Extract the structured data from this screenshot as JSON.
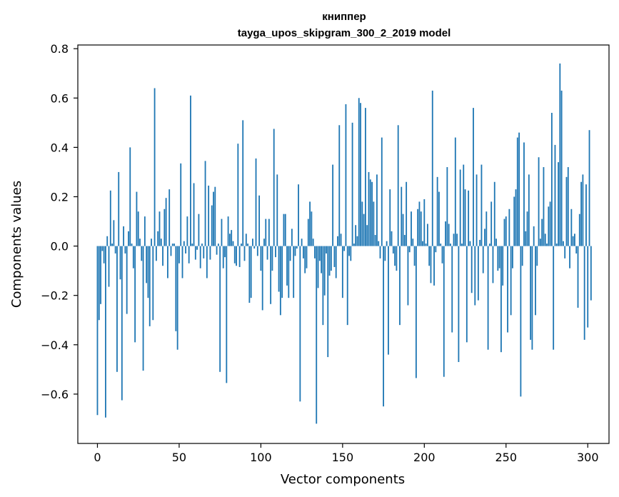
{
  "chart_data": {
    "type": "bar",
    "title_line1": "книппер",
    "title_line2": "tayga_upos_skipgram_300_2_2019 model",
    "xlabel": "Vector components",
    "ylabel": "Components values",
    "xlim": [
      -12,
      313
    ],
    "ylim": [
      -0.8,
      0.815
    ],
    "xticks": [
      0,
      50,
      100,
      150,
      200,
      250,
      300
    ],
    "yticks": [
      -0.6,
      -0.4,
      -0.2,
      0.0,
      0.2,
      0.4,
      0.6,
      0.8
    ],
    "ytick_labels": [
      "−0.6",
      "−0.4",
      "−0.2",
      "0.0",
      "0.2",
      "0.4",
      "0.6",
      "0.8"
    ],
    "bar_color": "#1f77b4",
    "bar_width": 0.8,
    "values": [
      -0.685,
      -0.3,
      -0.235,
      -0.02,
      -0.07,
      -0.695,
      0.04,
      -0.165,
      0.225,
      0.01,
      0.105,
      -0.03,
      -0.51,
      0.3,
      -0.135,
      -0.625,
      0.08,
      -0.03,
      -0.275,
      0.06,
      0.4,
      0.01,
      -0.09,
      -0.39,
      0.22,
      0.14,
      0.03,
      -0.06,
      -0.505,
      0.12,
      -0.15,
      -0.21,
      -0.325,
      0.03,
      -0.3,
      0.64,
      -0.06,
      0.06,
      0.14,
      0.03,
      -0.08,
      0.15,
      0.195,
      -0.13,
      0.23,
      -0.04,
      0.01,
      0.01,
      -0.345,
      -0.42,
      -0.07,
      0.335,
      -0.13,
      0.02,
      -0.03,
      0.12,
      -0.07,
      0.61,
      0.01,
      0.255,
      -0.055,
      -0.015,
      0.13,
      -0.09,
      0.01,
      -0.05,
      0.345,
      -0.13,
      0.245,
      -0.055,
      0.165,
      0.22,
      0.24,
      -0.035,
      0.01,
      -0.51,
      0.11,
      -0.09,
      -0.045,
      -0.555,
      0.12,
      0.05,
      0.065,
      0.02,
      -0.07,
      -0.08,
      0.415,
      -0.085,
      0.01,
      0.51,
      -0.06,
      0.05,
      0.01,
      -0.23,
      -0.21,
      0.03,
      -0.01,
      0.355,
      -0.04,
      0.205,
      -0.1,
      -0.26,
      0.03,
      0.11,
      -0.055,
      0.11,
      -0.235,
      -0.1,
      0.475,
      -0.045,
      0.29,
      -0.185,
      -0.28,
      -0.21,
      0.13,
      0.13,
      -0.16,
      -0.21,
      -0.06,
      0.07,
      -0.21,
      -0.04,
      -0.01,
      0.25,
      -0.63,
      0.03,
      -0.05,
      -0.11,
      -0.09,
      0.11,
      0.18,
      0.14,
      0.03,
      -0.05,
      -0.72,
      -0.17,
      -0.06,
      -0.11,
      -0.32,
      -0.2,
      -0.03,
      -0.45,
      -0.12,
      -0.1,
      0.33,
      -0.085,
      -0.13,
      0.04,
      0.49,
      0.05,
      -0.21,
      -0.02,
      0.575,
      -0.32,
      -0.04,
      -0.06,
      0.5,
      0.01,
      0.085,
      0.04,
      0.6,
      0.58,
      0.18,
      0.13,
      0.56,
      0.085,
      0.3,
      0.27,
      0.26,
      0.18,
      0.045,
      0.29,
      0.02,
      -0.05,
      0.44,
      -0.65,
      -0.06,
      0.02,
      -0.44,
      0.23,
      0.06,
      -0.03,
      -0.08,
      -0.1,
      0.49,
      -0.32,
      0.24,
      0.13,
      0.045,
      0.26,
      -0.24,
      -0.025,
      0.14,
      0.03,
      -0.08,
      -0.535,
      0.15,
      0.18,
      0.14,
      0.02,
      0.19,
      0.01,
      0.09,
      -0.08,
      -0.15,
      0.63,
      -0.16,
      -0.025,
      0.28,
      0.22,
      0.01,
      -0.07,
      -0.53,
      0.1,
      0.32,
      0.09,
      0.01,
      -0.35,
      0.05,
      0.44,
      0.05,
      -0.47,
      0.31,
      0.01,
      0.33,
      0.23,
      -0.39,
      0.225,
      0.02,
      -0.19,
      0.56,
      -0.24,
      0.29,
      -0.22,
      0.025,
      0.33,
      -0.11,
      0.07,
      0.14,
      -0.42,
      0.01,
      0.18,
      -0.15,
      0.26,
      0.03,
      -0.1,
      -0.09,
      -0.43,
      -0.16,
      0.11,
      0.12,
      -0.35,
      0.15,
      -0.28,
      -0.09,
      0.2,
      0.23,
      0.44,
      0.46,
      -0.61,
      -0.08,
      0.42,
      0.06,
      0.14,
      0.29,
      -0.38,
      -0.42,
      0.08,
      -0.28,
      -0.08,
      0.36,
      0.03,
      0.11,
      0.32,
      0.05,
      0.01,
      0.16,
      0.18,
      0.54,
      -0.42,
      0.41,
      0.01,
      0.34,
      0.74,
      0.63,
      0.02,
      -0.05,
      0.28,
      0.32,
      -0.09,
      0.15,
      0.04,
      0.05,
      -0.03,
      -0.25,
      0.13,
      0.26,
      0.29,
      -0.38,
      0.25,
      -0.33,
      0.47,
      -0.22
    ]
  }
}
